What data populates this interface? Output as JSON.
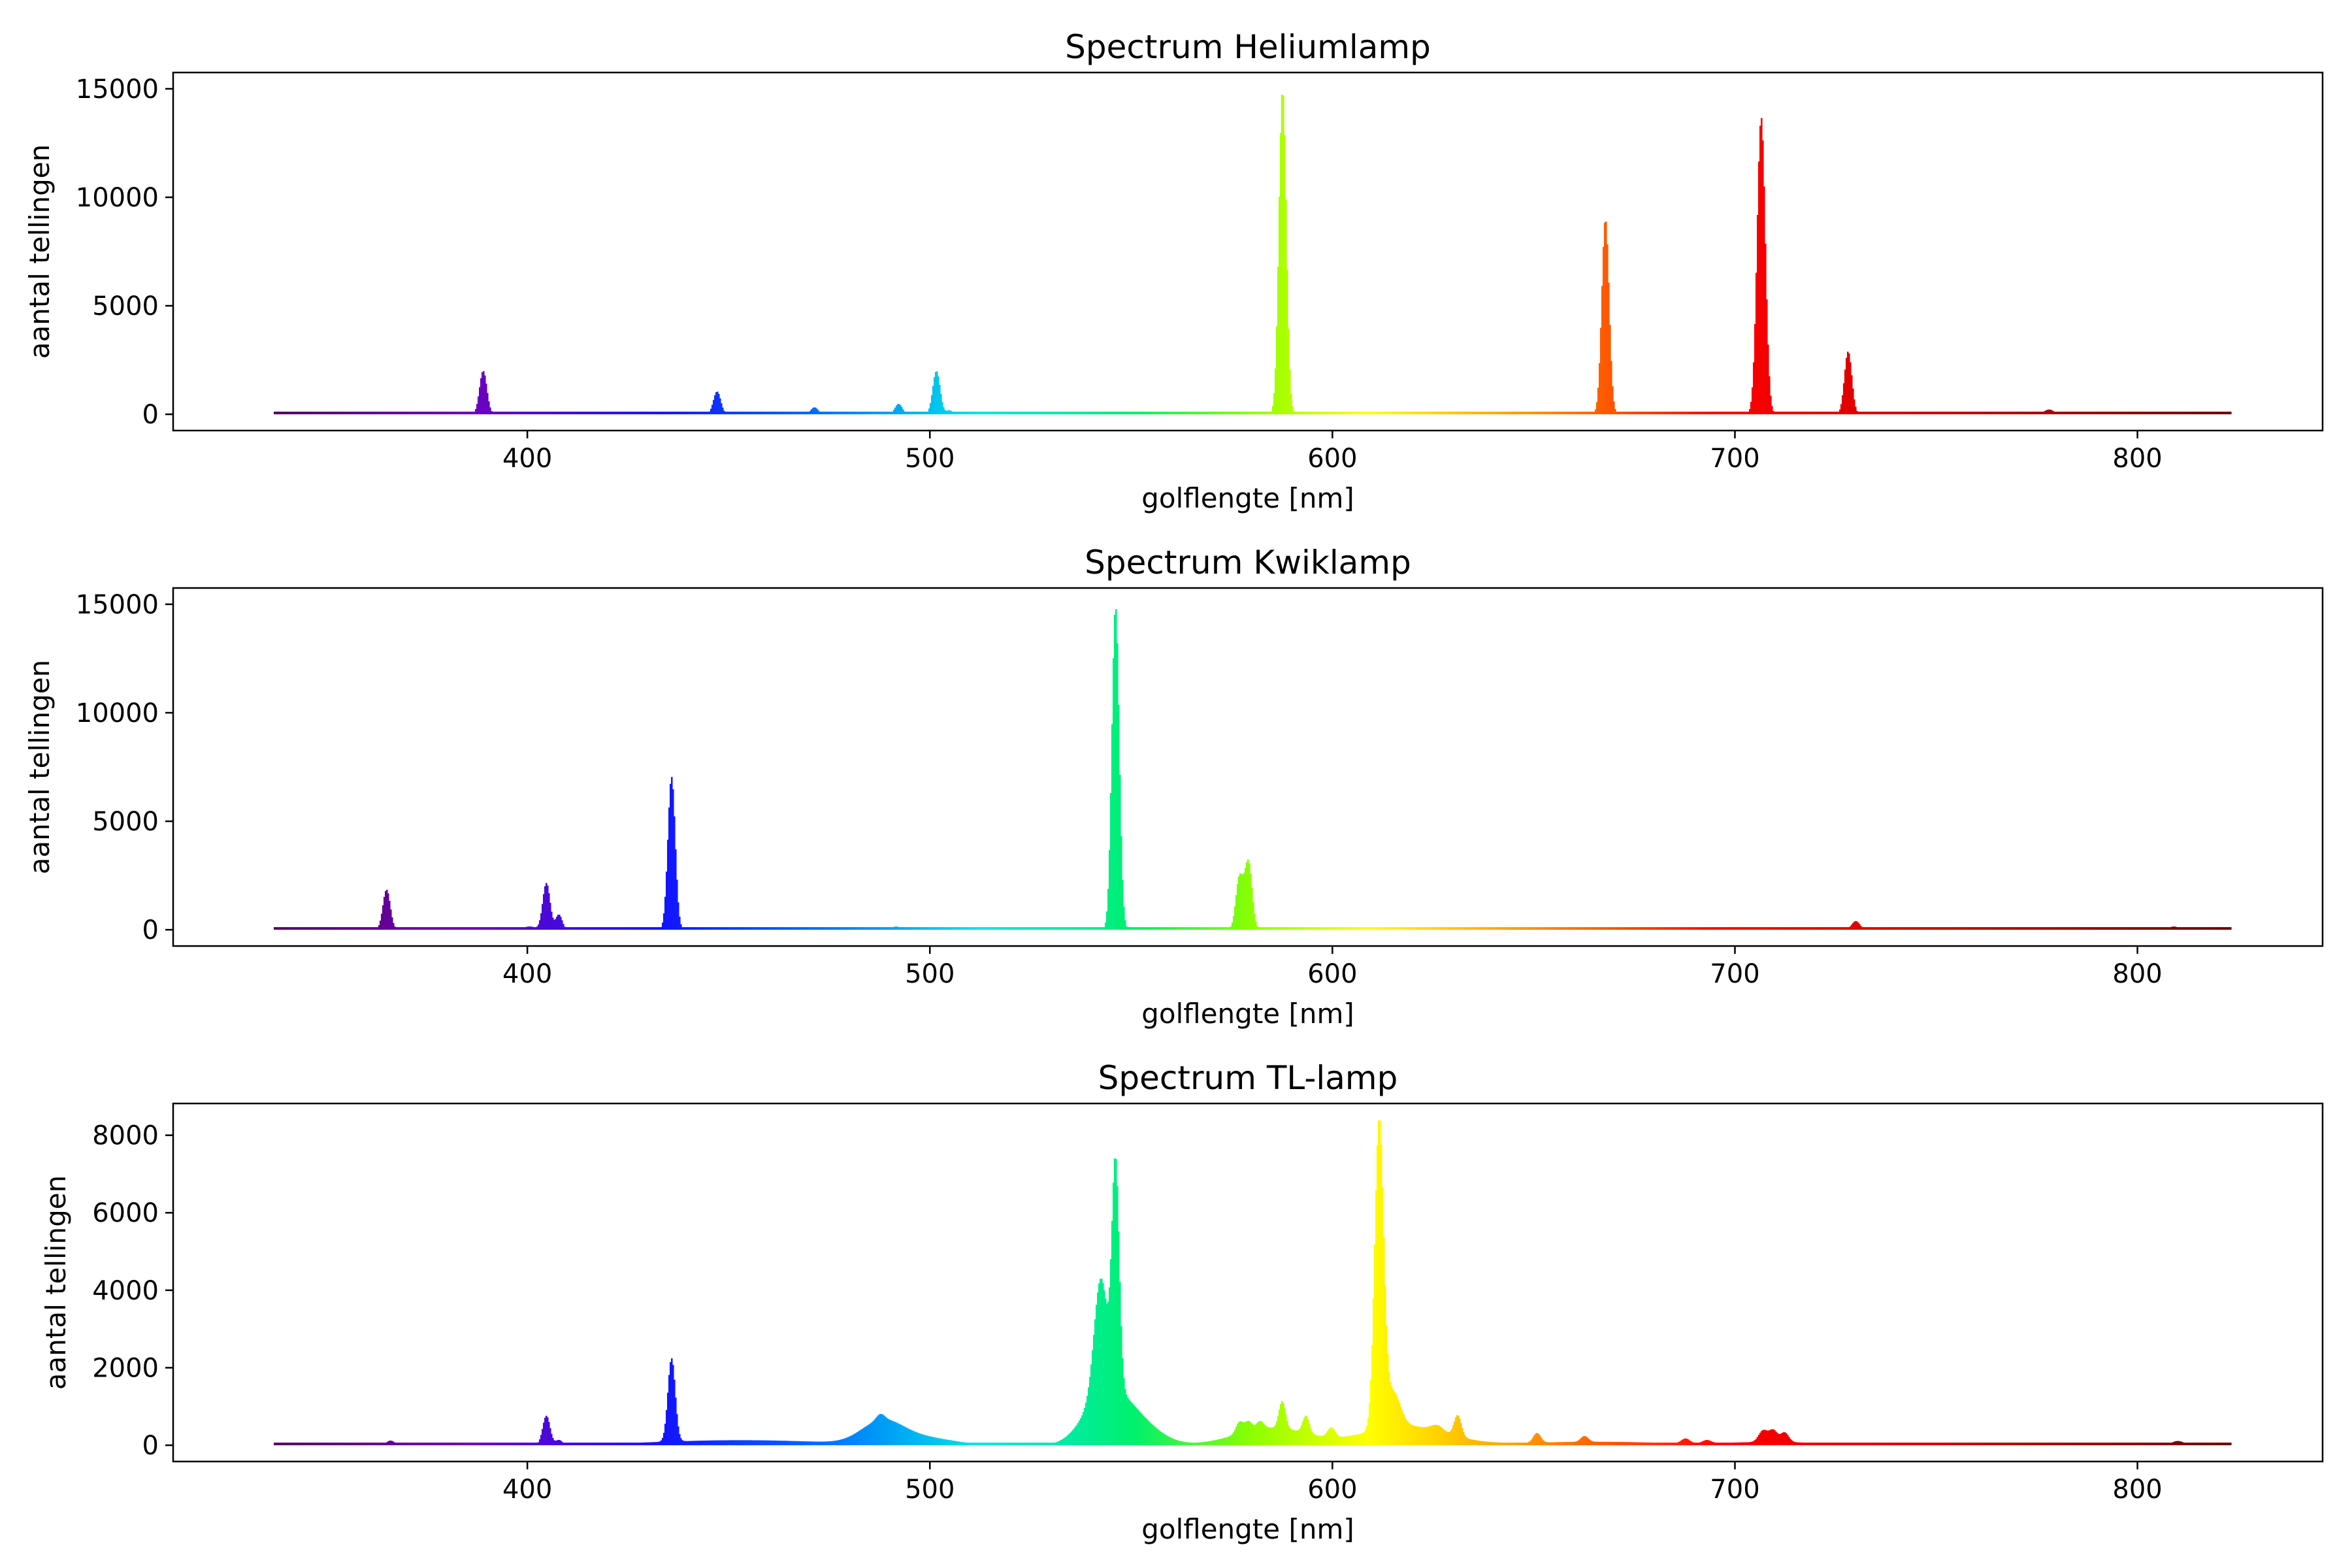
{
  "chart_data": [
    {
      "type": "area",
      "title": "Spectrum Heliumlamp",
      "xlabel": "golflengte [nm]",
      "ylabel": "aantal tellingen",
      "xlim": [
        312,
        846
      ],
      "ylim": [
        -750,
        15750
      ],
      "xticks": [
        400,
        500,
        600,
        700,
        800
      ],
      "yticks": [
        0,
        5000,
        10000,
        15000
      ],
      "x_range": [
        337,
        823
      ],
      "color_scale": "rainbow (violet at 337 nm to dark red at 823 nm)",
      "grid": false,
      "peaks": [
        {
          "x": 389,
          "y": 2000,
          "w": 0.9
        },
        {
          "x": 397,
          "y": 60,
          "w": 0.8
        },
        {
          "x": 402.6,
          "y": 120,
          "w": 0.9
        },
        {
          "x": 412,
          "y": 50,
          "w": 0.8
        },
        {
          "x": 439,
          "y": 60,
          "w": 0.8
        },
        {
          "x": 447.1,
          "y": 1050,
          "w": 0.9
        },
        {
          "x": 471.3,
          "y": 320,
          "w": 0.9
        },
        {
          "x": 492.2,
          "y": 480,
          "w": 0.9
        },
        {
          "x": 501.6,
          "y": 2000,
          "w": 0.9
        },
        {
          "x": 504.8,
          "y": 180,
          "w": 0.8
        },
        {
          "x": 587.6,
          "y": 14950,
          "w": 0.9
        },
        {
          "x": 667.8,
          "y": 9000,
          "w": 0.9
        },
        {
          "x": 706.5,
          "y": 13700,
          "w": 1.0
        },
        {
          "x": 728.1,
          "y": 2900,
          "w": 0.9
        },
        {
          "x": 778,
          "y": 220,
          "w": 1.2
        }
      ]
    },
    {
      "type": "area",
      "title": "Spectrum Kwiklamp",
      "xlabel": "golflengte [nm]",
      "ylabel": "aantal tellingen",
      "xlim": [
        312,
        846
      ],
      "ylim": [
        -750,
        15750
      ],
      "xticks": [
        400,
        500,
        600,
        700,
        800
      ],
      "yticks": [
        0,
        5000,
        10000,
        15000
      ],
      "x_range": [
        337,
        823
      ],
      "color_scale": "rainbow (violet at 337 nm to dark red at 823 nm)",
      "grid": false,
      "peaks": [
        {
          "x": 350,
          "y": 70,
          "w": 1.5
        },
        {
          "x": 365.0,
          "y": 1850,
          "w": 0.9
        },
        {
          "x": 400.5,
          "y": 150,
          "w": 1.5
        },
        {
          "x": 404.7,
          "y": 2150,
          "w": 0.9
        },
        {
          "x": 407.8,
          "y": 700,
          "w": 0.8
        },
        {
          "x": 421,
          "y": 90,
          "w": 1.5
        },
        {
          "x": 435.8,
          "y": 7050,
          "w": 0.9
        },
        {
          "x": 491.6,
          "y": 150,
          "w": 1.0
        },
        {
          "x": 546.1,
          "y": 14900,
          "w": 0.9
        },
        {
          "x": 576.9,
          "y": 2400,
          "w": 0.9
        },
        {
          "x": 579.1,
          "y": 3100,
          "w": 0.9
        },
        {
          "x": 690.7,
          "y": 80,
          "w": 1.2
        },
        {
          "x": 730,
          "y": 400,
          "w": 1.0
        },
        {
          "x": 809,
          "y": 150,
          "w": 1.2
        }
      ]
    },
    {
      "type": "area",
      "title": "Spectrum TL-lamp",
      "xlabel": "golflengte [nm]",
      "ylabel": "aantal tellingen",
      "xlim": [
        312,
        846
      ],
      "ylim": [
        -420,
        8820
      ],
      "xticks": [
        400,
        500,
        600,
        700,
        800
      ],
      "yticks": [
        0,
        2000,
        4000,
        6000,
        8000
      ],
      "x_range": [
        337,
        823
      ],
      "color_scale": "rainbow (violet at 337 nm to dark red at 823 nm)",
      "grid": false,
      "continuum": [
        {
          "x": 453,
          "y": 130,
          "w": 22
        },
        {
          "x": 488,
          "y": 520,
          "w": 5
        },
        {
          "x": 497,
          "y": 200,
          "w": 8
        },
        {
          "x": 543,
          "y": 1100,
          "w": 5
        },
        {
          "x": 550,
          "y": 700,
          "w": 6
        },
        {
          "x": 585,
          "y": 450,
          "w": 9
        },
        {
          "x": 618,
          "y": 500,
          "w": 10
        },
        {
          "x": 665,
          "y": 90,
          "w": 18
        },
        {
          "x": 710,
          "y": 80,
          "w": 12
        }
      ],
      "peaks": [
        {
          "x": 366,
          "y": 120,
          "w": 1.0
        },
        {
          "x": 404.7,
          "y": 750,
          "w": 0.9
        },
        {
          "x": 407.8,
          "y": 120,
          "w": 0.8
        },
        {
          "x": 435.8,
          "y": 2150,
          "w": 0.9
        },
        {
          "x": 487.7,
          "y": 150,
          "w": 1.0
        },
        {
          "x": 542.4,
          "y": 2900,
          "w": 1.6
        },
        {
          "x": 546.1,
          "y": 5800,
          "w": 0.9
        },
        {
          "x": 576.9,
          "y": 300,
          "w": 0.9
        },
        {
          "x": 579.1,
          "y": 250,
          "w": 0.9
        },
        {
          "x": 582,
          "y": 200,
          "w": 0.9
        },
        {
          "x": 587.5,
          "y": 700,
          "w": 0.8
        },
        {
          "x": 593.4,
          "y": 450,
          "w": 0.8
        },
        {
          "x": 599.7,
          "y": 250,
          "w": 0.9
        },
        {
          "x": 611.6,
          "y": 7900,
          "w": 1.1
        },
        {
          "x": 615,
          "y": 900,
          "w": 1.8
        },
        {
          "x": 626,
          "y": 150,
          "w": 1.5
        },
        {
          "x": 631.1,
          "y": 550,
          "w": 0.9
        },
        {
          "x": 650.8,
          "y": 250,
          "w": 0.9
        },
        {
          "x": 662.6,
          "y": 150,
          "w": 0.9
        },
        {
          "x": 687.7,
          "y": 120,
          "w": 1.0
        },
        {
          "x": 693,
          "y": 80,
          "w": 1.0
        },
        {
          "x": 707.0,
          "y": 300,
          "w": 1.1
        },
        {
          "x": 709.5,
          "y": 300,
          "w": 1.0
        },
        {
          "x": 712.3,
          "y": 250,
          "w": 1.0
        },
        {
          "x": 760,
          "y": 70,
          "w": 1.0
        },
        {
          "x": 810,
          "y": 110,
          "w": 1.5
        }
      ]
    }
  ]
}
